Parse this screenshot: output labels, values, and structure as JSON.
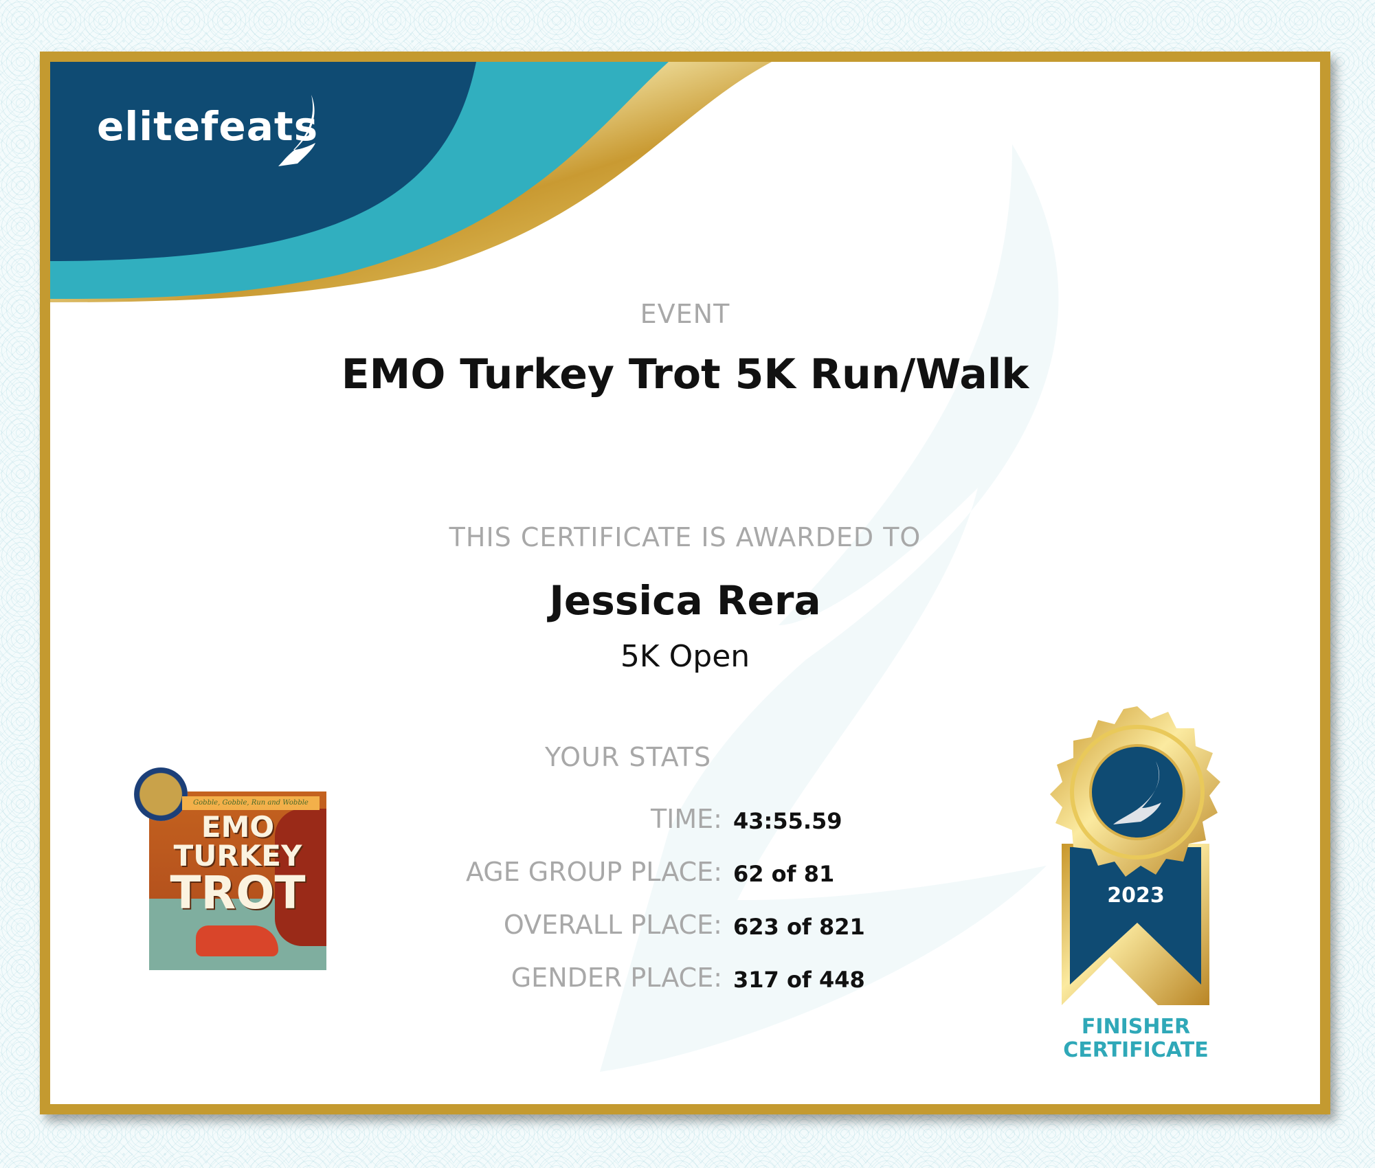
{
  "brand": {
    "logo_text": "elitefeats",
    "colors": {
      "navy": "#0f4b73",
      "teal": "#31afbf",
      "gold": "#c49a30"
    }
  },
  "certificate": {
    "event_label": "EVENT",
    "event_name": "EMO Turkey Trot 5K Run/Walk",
    "awarded_label": "THIS CERTIFICATE IS AWARDED TO",
    "participant_name": "Jessica Rera",
    "division": "5K Open",
    "stats_label": "YOUR STATS",
    "stats": [
      {
        "label": "TIME:",
        "value": "43:55.59"
      },
      {
        "label": "AGE GROUP PLACE:",
        "value": "62 of 81"
      },
      {
        "label": "OVERALL PLACE:",
        "value": "623 of 821"
      },
      {
        "label": "GENDER PLACE:",
        "value": "317 of 448"
      }
    ]
  },
  "event_logo": {
    "tagline": "Gobble, Gobble, Run and Wobble",
    "lines": [
      "EMO",
      "TURKEY",
      "TROT"
    ]
  },
  "medal": {
    "year": "2023",
    "caption_line1": "FINISHER",
    "caption_line2": "CERTIFICATE",
    "icon": "winged-foot-icon"
  }
}
